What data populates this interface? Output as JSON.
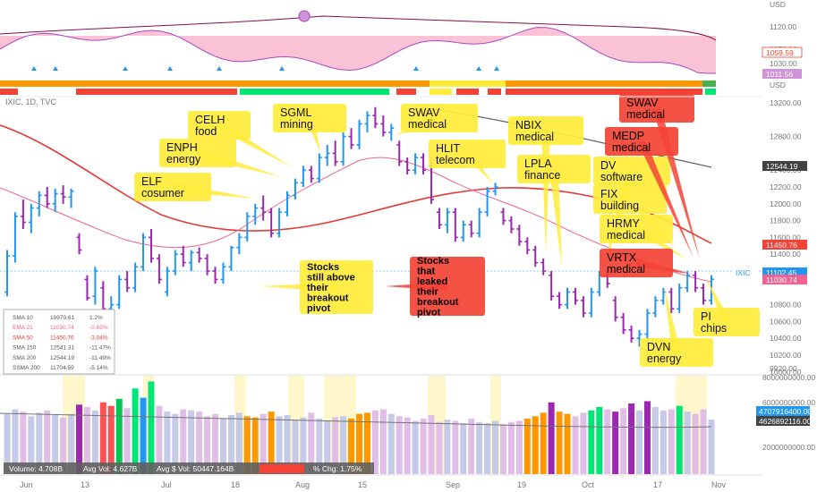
{
  "chart_data": {
    "type": "ohlc",
    "header": {
      "symbol_line": "IXIC, 1D, TVC",
      "currency_top": "USD",
      "currency_mid": "USD"
    },
    "colors": {
      "up": "#2196f3",
      "down": "#9c27b0",
      "ema21": "#f06292",
      "sma50": "#e53935",
      "sma200": "#616161",
      "callout": "#ffeb3b",
      "callout_red": "#f44336"
    },
    "price_axis": {
      "ticks": [
        "13200.00",
        "12800.00",
        "12400.00",
        "12200.00",
        "12000.00",
        "11800.00",
        "11600.00",
        "11400.00",
        "11200.00",
        "10800.00",
        "10600.00",
        "10400.00",
        "10200.00",
        "10000.00",
        "9920.00"
      ]
    },
    "price_tags": [
      {
        "label": "12544.19",
        "value": 12544.19,
        "color": "#424242"
      },
      {
        "label": "11450.76",
        "value": 11450.76,
        "color": "#f44336"
      },
      {
        "label": "IXIC",
        "value": 11102.45,
        "color": "#2196f3"
      },
      {
        "label": "11102.45",
        "value": 11102.45,
        "color": "#2196f3"
      },
      {
        "label": "11030.74",
        "value": 11030.74,
        "color": "#f06292"
      }
    ],
    "rs_axis": {
      "ticks": [
        "USD",
        "1120.00",
        "1070.00",
        "1030.00",
        "1000.00"
      ],
      "tags": [
        "1059.59",
        "1011.56"
      ]
    },
    "volume_axis": {
      "ticks": [
        "8000000000.00",
        "6000000000.00",
        "2000000000.00"
      ],
      "tags": [
        "4707916400.00",
        "4626892116.00"
      ]
    },
    "time_axis": [
      "Jun",
      "13",
      "Jul",
      "18",
      "Aug",
      "15",
      "Sep",
      "19",
      "Oct",
      "17",
      "Nov"
    ],
    "ma_table": [
      {
        "name": "SMA 10",
        "value": "10970.61",
        "pct": "1.2%",
        "color": "#555555"
      },
      {
        "name": "EMA 21",
        "value": "11030.74",
        "pct": "-0.65%",
        "color": "#f06292"
      },
      {
        "name": "SMA 50",
        "value": "11450.76",
        "pct": "-3.04%",
        "color": "#e53935"
      },
      {
        "name": "SMA 150",
        "value": "12541.31",
        "pct": "-11.47%",
        "color": "#555555"
      },
      {
        "name": "SMA 200",
        "value": "12544.19",
        "pct": "-11.49%",
        "color": "#555555"
      },
      {
        "name": "SSMA 200",
        "value": "11704.59",
        "pct": "-5.14%",
        "color": "#555555"
      }
    ],
    "volume_stats": {
      "volume": "Volume: 4.708B",
      "avg_vol": "Avg Vol: 4.627B",
      "avg_dollar": "Avg $ Vol: 50447.164B",
      "pct_chg": "% Chg: 1.75%"
    },
    "annotations": [
      {
        "text": [
          "ELF",
          "cosumer"
        ],
        "style": "yellow"
      },
      {
        "text": [
          "ENPH",
          "energy"
        ],
        "style": "yellow"
      },
      {
        "text": [
          "CELH",
          "food"
        ],
        "style": "yellow"
      },
      {
        "text": [
          "SGML",
          "mining"
        ],
        "style": "yellow"
      },
      {
        "text": [
          "SWAV",
          "medical"
        ],
        "style": "yellow"
      },
      {
        "text": [
          "HLIT",
          "telecom"
        ],
        "style": "yellow"
      },
      {
        "text": [
          "NBIX",
          "medical"
        ],
        "style": "yellow"
      },
      {
        "text": [
          "LPLA",
          "finance"
        ],
        "style": "yellow"
      },
      {
        "text": [
          "DV",
          "software"
        ],
        "style": "yellow"
      },
      {
        "text": [
          "FIX",
          "building"
        ],
        "style": "yellow"
      },
      {
        "text": [
          "HRMY",
          "medical"
        ],
        "style": "yellow"
      },
      {
        "text": [
          "VRTX",
          "medical"
        ],
        "style": "red"
      },
      {
        "text": [
          "MEDP",
          "medical"
        ],
        "style": "red"
      },
      {
        "text": [
          "SWAV",
          "medical"
        ],
        "style": "red"
      },
      {
        "text": [
          "PI",
          "chips"
        ],
        "style": "yellow"
      },
      {
        "text": [
          "DVN",
          "energy"
        ],
        "style": "yellow"
      },
      {
        "text": [
          "Stocks",
          "still above",
          "their",
          "breakout",
          "pivot"
        ],
        "style": "yellow"
      },
      {
        "text": [
          "Stocks",
          "that",
          "leaked",
          "their",
          "breakout",
          "pivot"
        ],
        "style": "red"
      }
    ],
    "bars": [
      {
        "o": 10950,
        "h": 11450,
        "l": 10900,
        "c": 11380
      },
      {
        "o": 11380,
        "h": 11900,
        "l": 11300,
        "c": 11850
      },
      {
        "o": 11850,
        "h": 12050,
        "l": 11700,
        "c": 11780
      },
      {
        "o": 11780,
        "h": 12000,
        "l": 11650,
        "c": 11950
      },
      {
        "o": 11950,
        "h": 12150,
        "l": 11850,
        "c": 12100
      },
      {
        "o": 12100,
        "h": 12200,
        "l": 11950,
        "c": 12000
      },
      {
        "o": 12000,
        "h": 12180,
        "l": 11900,
        "c": 12120
      },
      {
        "o": 12120,
        "h": 12220,
        "l": 12000,
        "c": 12080
      },
      {
        "o": 12080,
        "h": 12180,
        "l": 11950,
        "c": 12150
      },
      {
        "o": 11600,
        "h": 11650,
        "l": 11400,
        "c": 11450
      },
      {
        "o": 11100,
        "h": 11150,
        "l": 10850,
        "c": 10880
      },
      {
        "o": 10900,
        "h": 11250,
        "l": 10800,
        "c": 11200
      },
      {
        "o": 11000,
        "h": 11080,
        "l": 10700,
        "c": 10750
      },
      {
        "o": 10750,
        "h": 10900,
        "l": 10600,
        "c": 10800
      },
      {
        "o": 10800,
        "h": 11150,
        "l": 10750,
        "c": 11100
      },
      {
        "o": 11100,
        "h": 11200,
        "l": 10950,
        "c": 11000
      },
      {
        "o": 11000,
        "h": 11300,
        "l": 10950,
        "c": 11250
      },
      {
        "o": 11250,
        "h": 11650,
        "l": 11200,
        "c": 11600
      },
      {
        "o": 11600,
        "h": 11700,
        "l": 11300,
        "c": 11350
      },
      {
        "o": 11350,
        "h": 11400,
        "l": 11050,
        "c": 11100
      },
      {
        "o": 10950,
        "h": 11250,
        "l": 10900,
        "c": 11200
      },
      {
        "o": 11200,
        "h": 11450,
        "l": 11150,
        "c": 11400
      },
      {
        "o": 11400,
        "h": 11500,
        "l": 11250,
        "c": 11300
      },
      {
        "o": 11300,
        "h": 11450,
        "l": 11200,
        "c": 11420
      },
      {
        "o": 11420,
        "h": 11480,
        "l": 11300,
        "c": 11350
      },
      {
        "o": 11350,
        "h": 11400,
        "l": 11150,
        "c": 11200
      },
      {
        "o": 11200,
        "h": 11250,
        "l": 11050,
        "c": 11100
      },
      {
        "o": 11100,
        "h": 11300,
        "l": 11050,
        "c": 11250
      },
      {
        "o": 11250,
        "h": 11500,
        "l": 11200,
        "c": 11480
      },
      {
        "o": 11480,
        "h": 11650,
        "l": 11400,
        "c": 11600
      },
      {
        "o": 11600,
        "h": 11900,
        "l": 11550,
        "c": 11850
      },
      {
        "o": 11850,
        "h": 12000,
        "l": 11750,
        "c": 11950
      },
      {
        "o": 11950,
        "h": 12100,
        "l": 11800,
        "c": 11900
      },
      {
        "o": 11900,
        "h": 11950,
        "l": 11600,
        "c": 11650
      },
      {
        "o": 11650,
        "h": 11950,
        "l": 11600,
        "c": 11900
      },
      {
        "o": 11900,
        "h": 12150,
        "l": 11850,
        "c": 12100
      },
      {
        "o": 12100,
        "h": 12300,
        "l": 12050,
        "c": 12250
      },
      {
        "o": 12250,
        "h": 12450,
        "l": 12200,
        "c": 12400
      },
      {
        "o": 12400,
        "h": 12450,
        "l": 12250,
        "c": 12300
      },
      {
        "o": 12300,
        "h": 12600,
        "l": 12250,
        "c": 12550
      },
      {
        "o": 12550,
        "h": 12700,
        "l": 12450,
        "c": 12600
      },
      {
        "o": 12600,
        "h": 12750,
        "l": 12450,
        "c": 12500
      },
      {
        "o": 12500,
        "h": 12850,
        "l": 12450,
        "c": 12800
      },
      {
        "o": 12800,
        "h": 12900,
        "l": 12650,
        "c": 12700
      },
      {
        "o": 12700,
        "h": 13000,
        "l": 12650,
        "c": 12950
      },
      {
        "o": 12950,
        "h": 13100,
        "l": 12850,
        "c": 13050
      },
      {
        "o": 13050,
        "h": 13150,
        "l": 12900,
        "c": 12950
      },
      {
        "o": 12950,
        "h": 13050,
        "l": 12800,
        "c": 12850
      },
      {
        "o": 12850,
        "h": 12950,
        "l": 12750,
        "c": 12900
      },
      {
        "o": 12700,
        "h": 12750,
        "l": 12450,
        "c": 12500
      },
      {
        "o": 12500,
        "h": 12550,
        "l": 12350,
        "c": 12400
      },
      {
        "o": 12400,
        "h": 12600,
        "l": 12350,
        "c": 12550
      },
      {
        "o": 12550,
        "h": 12600,
        "l": 12350,
        "c": 12400
      },
      {
        "o": 12450,
        "h": 12550,
        "l": 12000,
        "c": 12050
      },
      {
        "o": 11900,
        "h": 11950,
        "l": 11700,
        "c": 11750
      },
      {
        "o": 11750,
        "h": 11950,
        "l": 11650,
        "c": 11900
      },
      {
        "o": 11900,
        "h": 11950,
        "l": 11550,
        "c": 11600
      },
      {
        "o": 11600,
        "h": 11800,
        "l": 11550,
        "c": 11750
      },
      {
        "o": 11750,
        "h": 11800,
        "l": 11600,
        "c": 11650
      },
      {
        "o": 11650,
        "h": 11950,
        "l": 11600,
        "c": 11900
      },
      {
        "o": 11900,
        "h": 12200,
        "l": 11850,
        "c": 12150
      },
      {
        "o": 12150,
        "h": 12250,
        "l": 12100,
        "c": 12200
      },
      {
        "o": 11900,
        "h": 11950,
        "l": 11750,
        "c": 11800
      },
      {
        "o": 11800,
        "h": 11850,
        "l": 11650,
        "c": 11700
      },
      {
        "o": 11700,
        "h": 11750,
        "l": 11500,
        "c": 11550
      },
      {
        "o": 11550,
        "h": 11600,
        "l": 11400,
        "c": 11450
      },
      {
        "o": 11450,
        "h": 11500,
        "l": 11250,
        "c": 11300
      },
      {
        "o": 11300,
        "h": 11350,
        "l": 11150,
        "c": 11200
      },
      {
        "o": 11150,
        "h": 11200,
        "l": 10850,
        "c": 10900
      },
      {
        "o": 10900,
        "h": 10950,
        "l": 10750,
        "c": 10800
      },
      {
        "o": 10800,
        "h": 11000,
        "l": 10750,
        "c": 10950
      },
      {
        "o": 10950,
        "h": 11000,
        "l": 10800,
        "c": 10850
      },
      {
        "o": 10850,
        "h": 10900,
        "l": 10650,
        "c": 10700
      },
      {
        "o": 10700,
        "h": 11000,
        "l": 10650,
        "c": 10950
      },
      {
        "o": 10950,
        "h": 11200,
        "l": 10900,
        "c": 11150
      },
      {
        "o": 11150,
        "h": 11200,
        "l": 11000,
        "c": 11050
      },
      {
        "o": 10850,
        "h": 10900,
        "l": 10600,
        "c": 10650
      },
      {
        "o": 10650,
        "h": 10700,
        "l": 10450,
        "c": 10500
      },
      {
        "o": 10500,
        "h": 10550,
        "l": 10350,
        "c": 10400
      },
      {
        "o": 10400,
        "h": 10500,
        "l": 10300,
        "c": 10450
      },
      {
        "o": 10450,
        "h": 10750,
        "l": 10100,
        "c": 10700
      },
      {
        "o": 10700,
        "h": 10900,
        "l": 10650,
        "c": 10850
      },
      {
        "o": 10850,
        "h": 11000,
        "l": 10800,
        "c": 10950
      },
      {
        "o": 10950,
        "h": 11000,
        "l": 10700,
        "c": 10750
      },
      {
        "o": 10750,
        "h": 11050,
        "l": 10700,
        "c": 11000
      },
      {
        "o": 11000,
        "h": 11200,
        "l": 10950,
        "c": 11150
      },
      {
        "o": 11150,
        "h": 11200,
        "l": 10950,
        "c": 11000
      },
      {
        "o": 11000,
        "h": 11050,
        "l": 10800,
        "c": 10850
      },
      {
        "o": 10850,
        "h": 11150,
        "l": 10800,
        "c": 11102
      }
    ],
    "volumes": [
      5.2,
      5.6,
      5.4,
      5.0,
      5.3,
      5.5,
      5.1,
      4.9,
      5.2,
      6.0,
      5.8,
      5.5,
      6.2,
      5.9,
      6.5,
      5.7,
      7.4,
      6.6,
      8.0,
      5.9,
      5.4,
      5.2,
      5.6,
      5.5,
      5.4,
      5.0,
      5.2,
      4.8,
      5.1,
      5.3,
      5.0,
      4.9,
      5.2,
      5.4,
      5.0,
      5.1,
      4.7,
      4.9,
      5.3,
      4.8,
      4.6,
      4.9,
      5.0,
      4.8,
      5.2,
      5.3,
      5.5,
      5.6,
      5.2,
      5.0,
      4.9,
      4.6,
      4.8,
      5.1,
      4.5,
      4.7,
      4.6,
      4.4,
      4.8,
      4.5,
      4.4,
      4.6,
      4.3,
      4.5,
      4.6,
      4.8,
      5.0,
      5.3,
      6.2,
      5.4,
      5.2,
      5.0,
      5.3,
      5.5,
      5.8,
      5.6,
      5.4,
      5.7,
      6.1,
      5.5,
      6.3,
      5.8,
      5.5,
      5.6,
      5.9,
      5.4,
      5.2,
      5.6,
      4.71
    ]
  }
}
